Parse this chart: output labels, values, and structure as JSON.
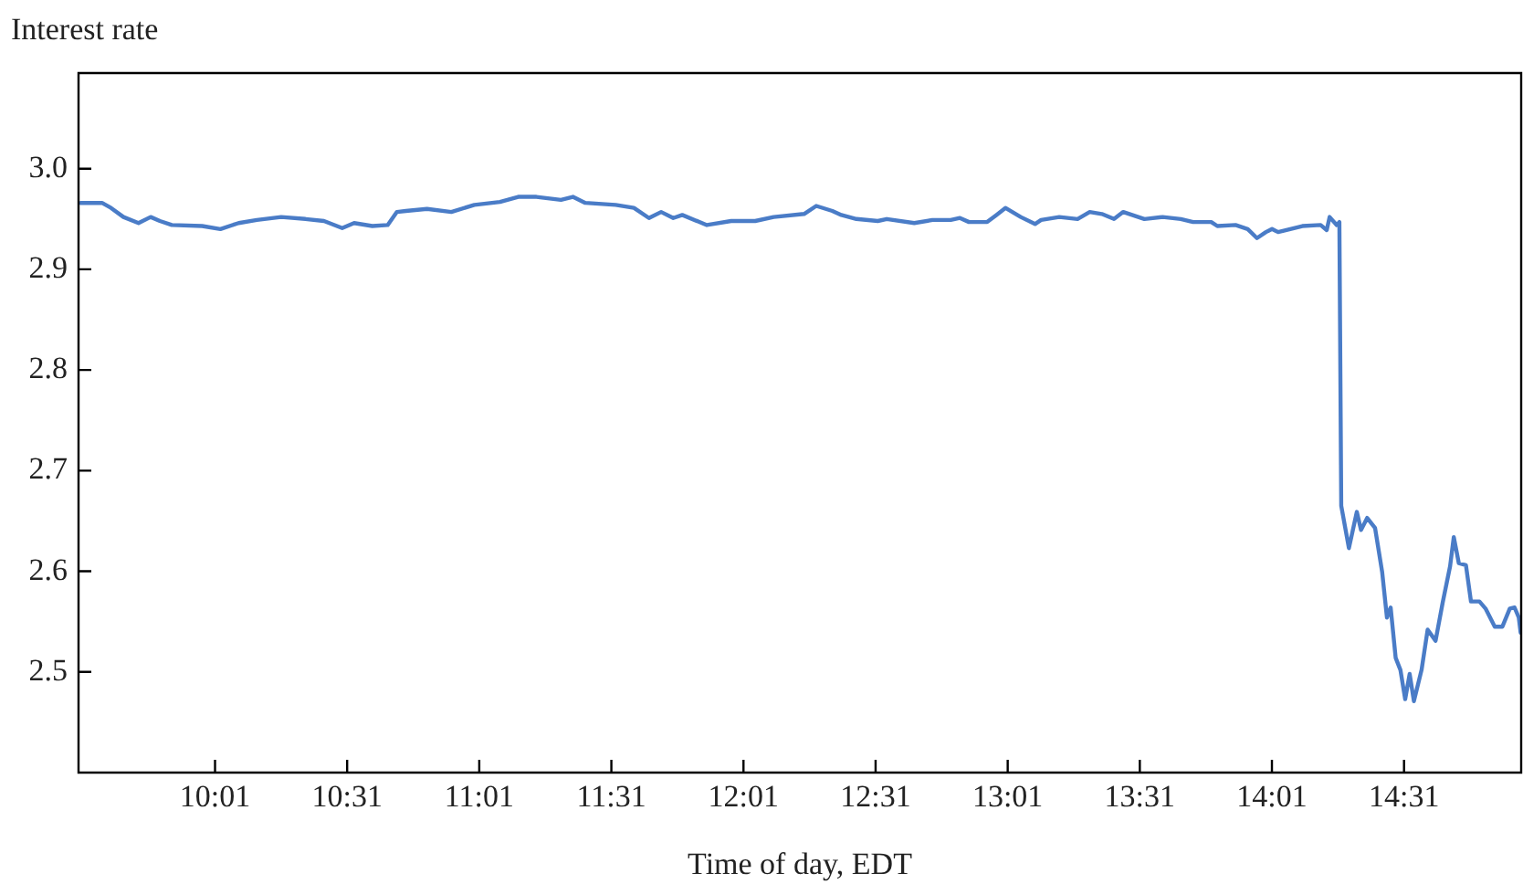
{
  "chart_data": {
    "type": "line",
    "ylabel": "Interest rate",
    "xlabel": "Time of day, EDT",
    "xlim": [
      9.5,
      14.96
    ],
    "ylim": [
      2.4,
      3.095
    ],
    "xticks": [
      {
        "value": 10.01667,
        "label": "10:01"
      },
      {
        "value": 10.51667,
        "label": "10:31"
      },
      {
        "value": 11.01667,
        "label": "11:01"
      },
      {
        "value": 11.51667,
        "label": "11:31"
      },
      {
        "value": 12.01667,
        "label": "12:01"
      },
      {
        "value": 12.51667,
        "label": "12:31"
      },
      {
        "value": 13.01667,
        "label": "13:01"
      },
      {
        "value": 13.51667,
        "label": "13:31"
      },
      {
        "value": 14.01667,
        "label": "14:01"
      },
      {
        "value": 14.51667,
        "label": "14:31"
      }
    ],
    "yticks": [
      2.5,
      2.6,
      2.7,
      2.8,
      2.9,
      {
        "value": 3,
        "label": "3.0"
      }
    ],
    "marker": "none",
    "line_style": "solid",
    "series": [
      {
        "color": "#4a7cc7",
        "x": [
          9.508,
          9.589,
          9.623,
          9.67,
          9.727,
          9.773,
          9.808,
          9.853,
          9.968,
          10.037,
          10.106,
          10.175,
          10.267,
          10.359,
          10.429,
          10.498,
          10.543,
          10.612,
          10.67,
          10.705,
          10.739,
          10.819,
          10.911,
          10.998,
          11.095,
          11.164,
          11.233,
          11.326,
          11.371,
          11.418,
          11.533,
          11.602,
          11.659,
          11.705,
          11.751,
          11.785,
          11.878,
          11.97,
          12.061,
          12.131,
          12.246,
          12.292,
          12.353,
          12.387,
          12.444,
          12.525,
          12.559,
          12.663,
          12.732,
          12.801,
          12.836,
          12.87,
          12.939,
          12.974,
          13.008,
          13.066,
          13.12,
          13.143,
          13.212,
          13.281,
          13.327,
          13.373,
          13.419,
          13.454,
          13.534,
          13.603,
          13.672,
          13.718,
          13.787,
          13.81,
          13.879,
          13.925,
          13.96,
          13.994,
          14.017,
          14.04,
          14.132,
          14.201,
          14.224,
          14.235,
          14.262,
          14.272,
          14.279,
          14.308,
          14.338,
          14.354,
          14.377,
          14.407,
          14.434,
          14.452,
          14.466,
          14.485,
          14.503,
          14.521,
          14.538,
          14.554,
          14.583,
          14.606,
          14.636,
          14.663,
          14.691,
          14.705,
          14.724,
          14.751,
          14.77,
          14.802,
          14.825,
          14.86,
          14.889,
          14.917,
          14.935,
          14.951,
          14.958
        ],
        "values": [
          2.966,
          2.966,
          2.961,
          2.952,
          2.946,
          2.952,
          2.948,
          2.944,
          2.943,
          2.94,
          2.946,
          2.949,
          2.952,
          2.95,
          2.948,
          2.941,
          2.946,
          2.943,
          2.944,
          2.957,
          2.958,
          2.96,
          2.957,
          2.964,
          2.967,
          2.972,
          2.972,
          2.969,
          2.972,
          2.966,
          2.964,
          2.961,
          2.951,
          2.957,
          2.951,
          2.954,
          2.944,
          2.948,
          2.948,
          2.952,
          2.955,
          2.963,
          2.958,
          2.954,
          2.95,
          2.948,
          2.95,
          2.946,
          2.949,
          2.949,
          2.951,
          2.947,
          2.947,
          2.954,
          2.961,
          2.952,
          2.945,
          2.949,
          2.952,
          2.95,
          2.957,
          2.955,
          2.95,
          2.957,
          2.95,
          2.952,
          2.95,
          2.947,
          2.947,
          2.943,
          2.944,
          2.94,
          2.931,
          2.937,
          2.94,
          2.937,
          2.943,
          2.944,
          2.939,
          2.952,
          2.944,
          2.947,
          2.665,
          2.623,
          2.659,
          2.641,
          2.653,
          2.643,
          2.599,
          2.554,
          2.564,
          2.514,
          2.502,
          2.473,
          2.498,
          2.471,
          2.502,
          2.542,
          2.531,
          2.569,
          2.605,
          2.634,
          2.608,
          2.606,
          2.57,
          2.57,
          2.563,
          2.545,
          2.545,
          2.563,
          2.564,
          2.554,
          2.539
        ]
      }
    ]
  }
}
